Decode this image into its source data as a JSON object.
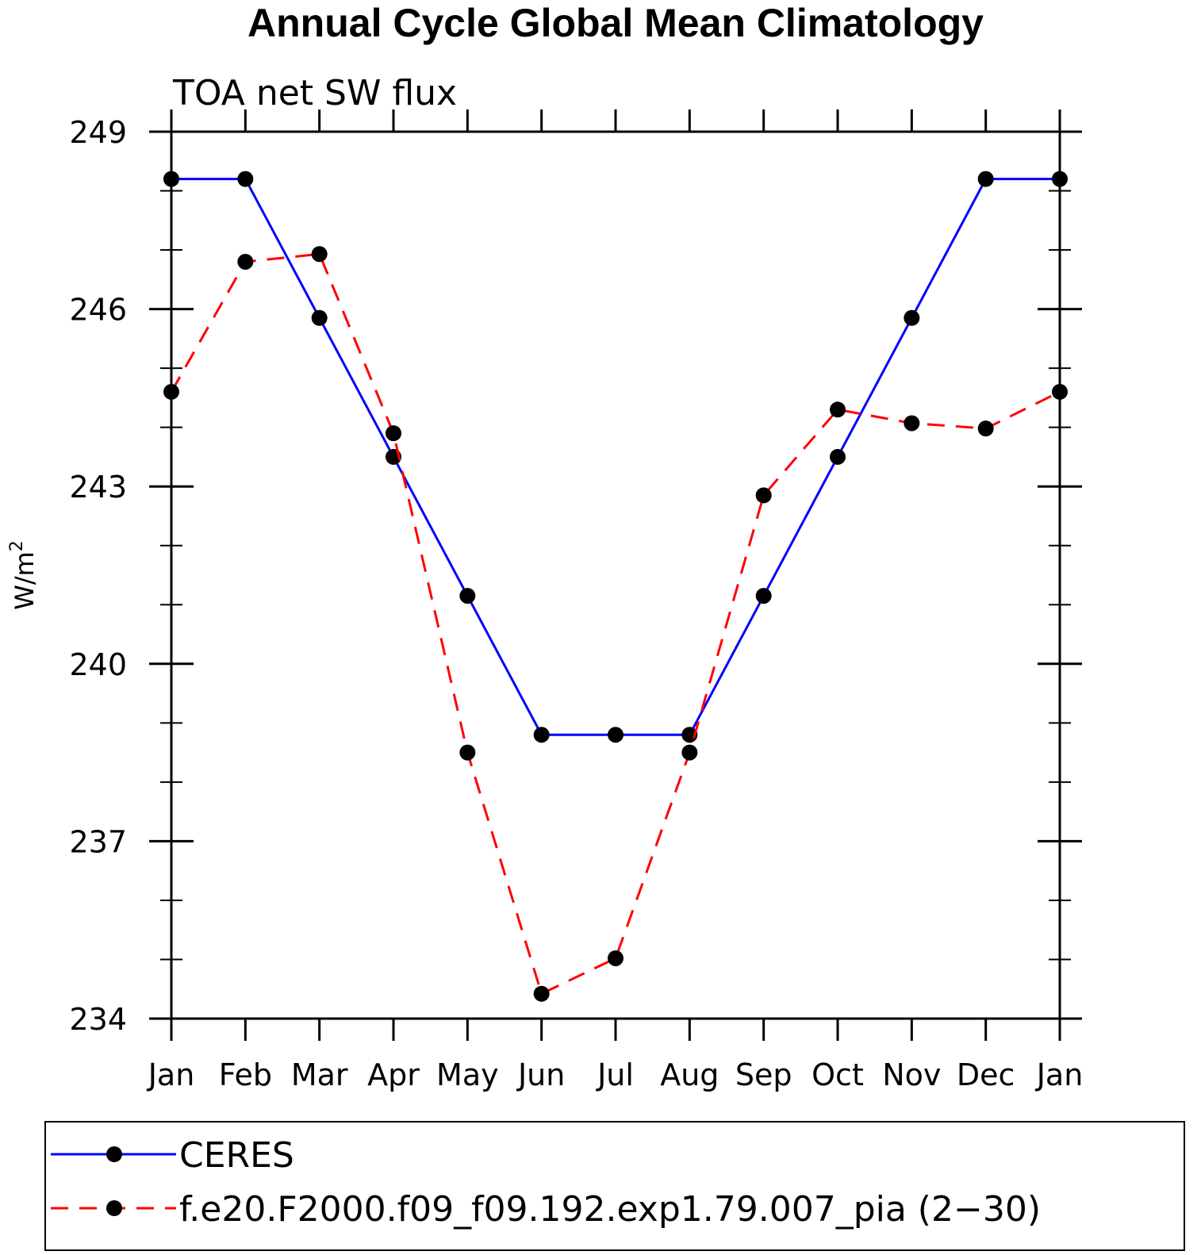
{
  "chart_data": {
    "type": "line",
    "title": "Annual Cycle Global Mean Climatology",
    "subtitle": "TOA net SW flux",
    "ylabel": "W/m",
    "ylabel_superscript": "2",
    "categories": [
      "Jan",
      "Feb",
      "Mar",
      "Apr",
      "May",
      "Jun",
      "Jul",
      "Aug",
      "Sep",
      "Oct",
      "Nov",
      "Dec",
      "Jan"
    ],
    "ylim": [
      234,
      249
    ],
    "yticks": [
      234,
      237,
      240,
      243,
      246,
      249
    ],
    "yminor_step": 1,
    "grid": false,
    "legend_position": "bottom",
    "series": [
      {
        "name": "CERES",
        "color": "#0000ff",
        "dash": "solid",
        "marker": "filled-circle",
        "values": [
          248.2,
          248.2,
          245.85,
          243.5,
          241.15,
          238.8,
          238.8,
          238.8,
          241.15,
          243.5,
          245.85,
          248.2,
          248.2
        ]
      },
      {
        "name": "f.e20.F2000.f09_f09.192.exp1.79.007_pia (2−30)",
        "color": "#ff0000",
        "dash": "dashed",
        "marker": "filled-circle",
        "values": [
          244.6,
          246.8,
          246.93,
          243.9,
          238.5,
          234.42,
          235.02,
          238.5,
          242.85,
          244.3,
          244.07,
          243.98,
          244.6
        ]
      }
    ]
  }
}
